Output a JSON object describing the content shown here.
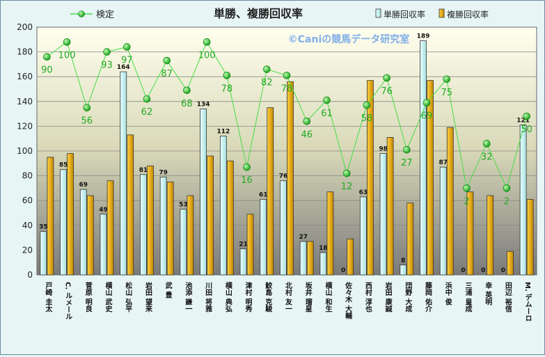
{
  "chart_data": {
    "type": "bar",
    "title": "単勝、複勝回収率",
    "watermark": "©Caniの競馬データ研究室",
    "ylim": [
      0,
      200
    ],
    "yticks": [
      0,
      20,
      40,
      60,
      80,
      100,
      120,
      140,
      160,
      180,
      200
    ],
    "grid": true,
    "legend_position": "top",
    "categories": [
      "戸崎 圭太",
      "C. ルメール",
      "菅原 明良",
      "横山 武史",
      "松山 弘平",
      "岩田 望来",
      "武 豊",
      "池添 謙一",
      "川田 将雅",
      "横山 典弘",
      "津村 明秀",
      "鮫島 克駿",
      "北村 友一",
      "坂井 瑠星",
      "横山 和生",
      "佐々木 大輔",
      "西村 淳也",
      "岩田 康誠",
      "団野 大成",
      "藤岡 佑介",
      "浜中 俊",
      "三浦 皇成",
      "幸 英明",
      "田辺 裕信",
      "M. デムーロ"
    ],
    "series": [
      {
        "name": "単勝回収率",
        "type": "bar",
        "color": "#c8f0f0",
        "values": [
          35,
          85,
          69,
          49,
          164,
          81,
          79,
          53,
          134,
          112,
          21,
          61,
          76,
          27,
          18,
          0,
          63,
          98,
          8,
          189,
          87,
          0,
          0,
          0,
          121
        ]
      },
      {
        "name": "複勝回収率",
        "type": "bar",
        "color": "#f0b400",
        "values": [
          95,
          98,
          64,
          76,
          113,
          88,
          75,
          64,
          96,
          92,
          49,
          135,
          156,
          27,
          67,
          29,
          157,
          111,
          58,
          157,
          119,
          67,
          64,
          19,
          61
        ]
      },
      {
        "name": "検定",
        "type": "line",
        "color": "#22bb22",
        "values": [
          176,
          188,
          135,
          180,
          184,
          142,
          173,
          149,
          188,
          161,
          87,
          166,
          161,
          124,
          141,
          82,
          137,
          159,
          101,
          139,
          158,
          70,
          106,
          70,
          128
        ],
        "labels": [
          "90",
          "100",
          "56",
          "93",
          "97",
          "62",
          "87",
          "68",
          "100",
          "78",
          "16",
          "82",
          "78",
          "46",
          "61",
          "12",
          "58",
          "76",
          "27",
          "69",
          "75",
          "2",
          "32",
          "2",
          "50"
        ]
      }
    ]
  }
}
